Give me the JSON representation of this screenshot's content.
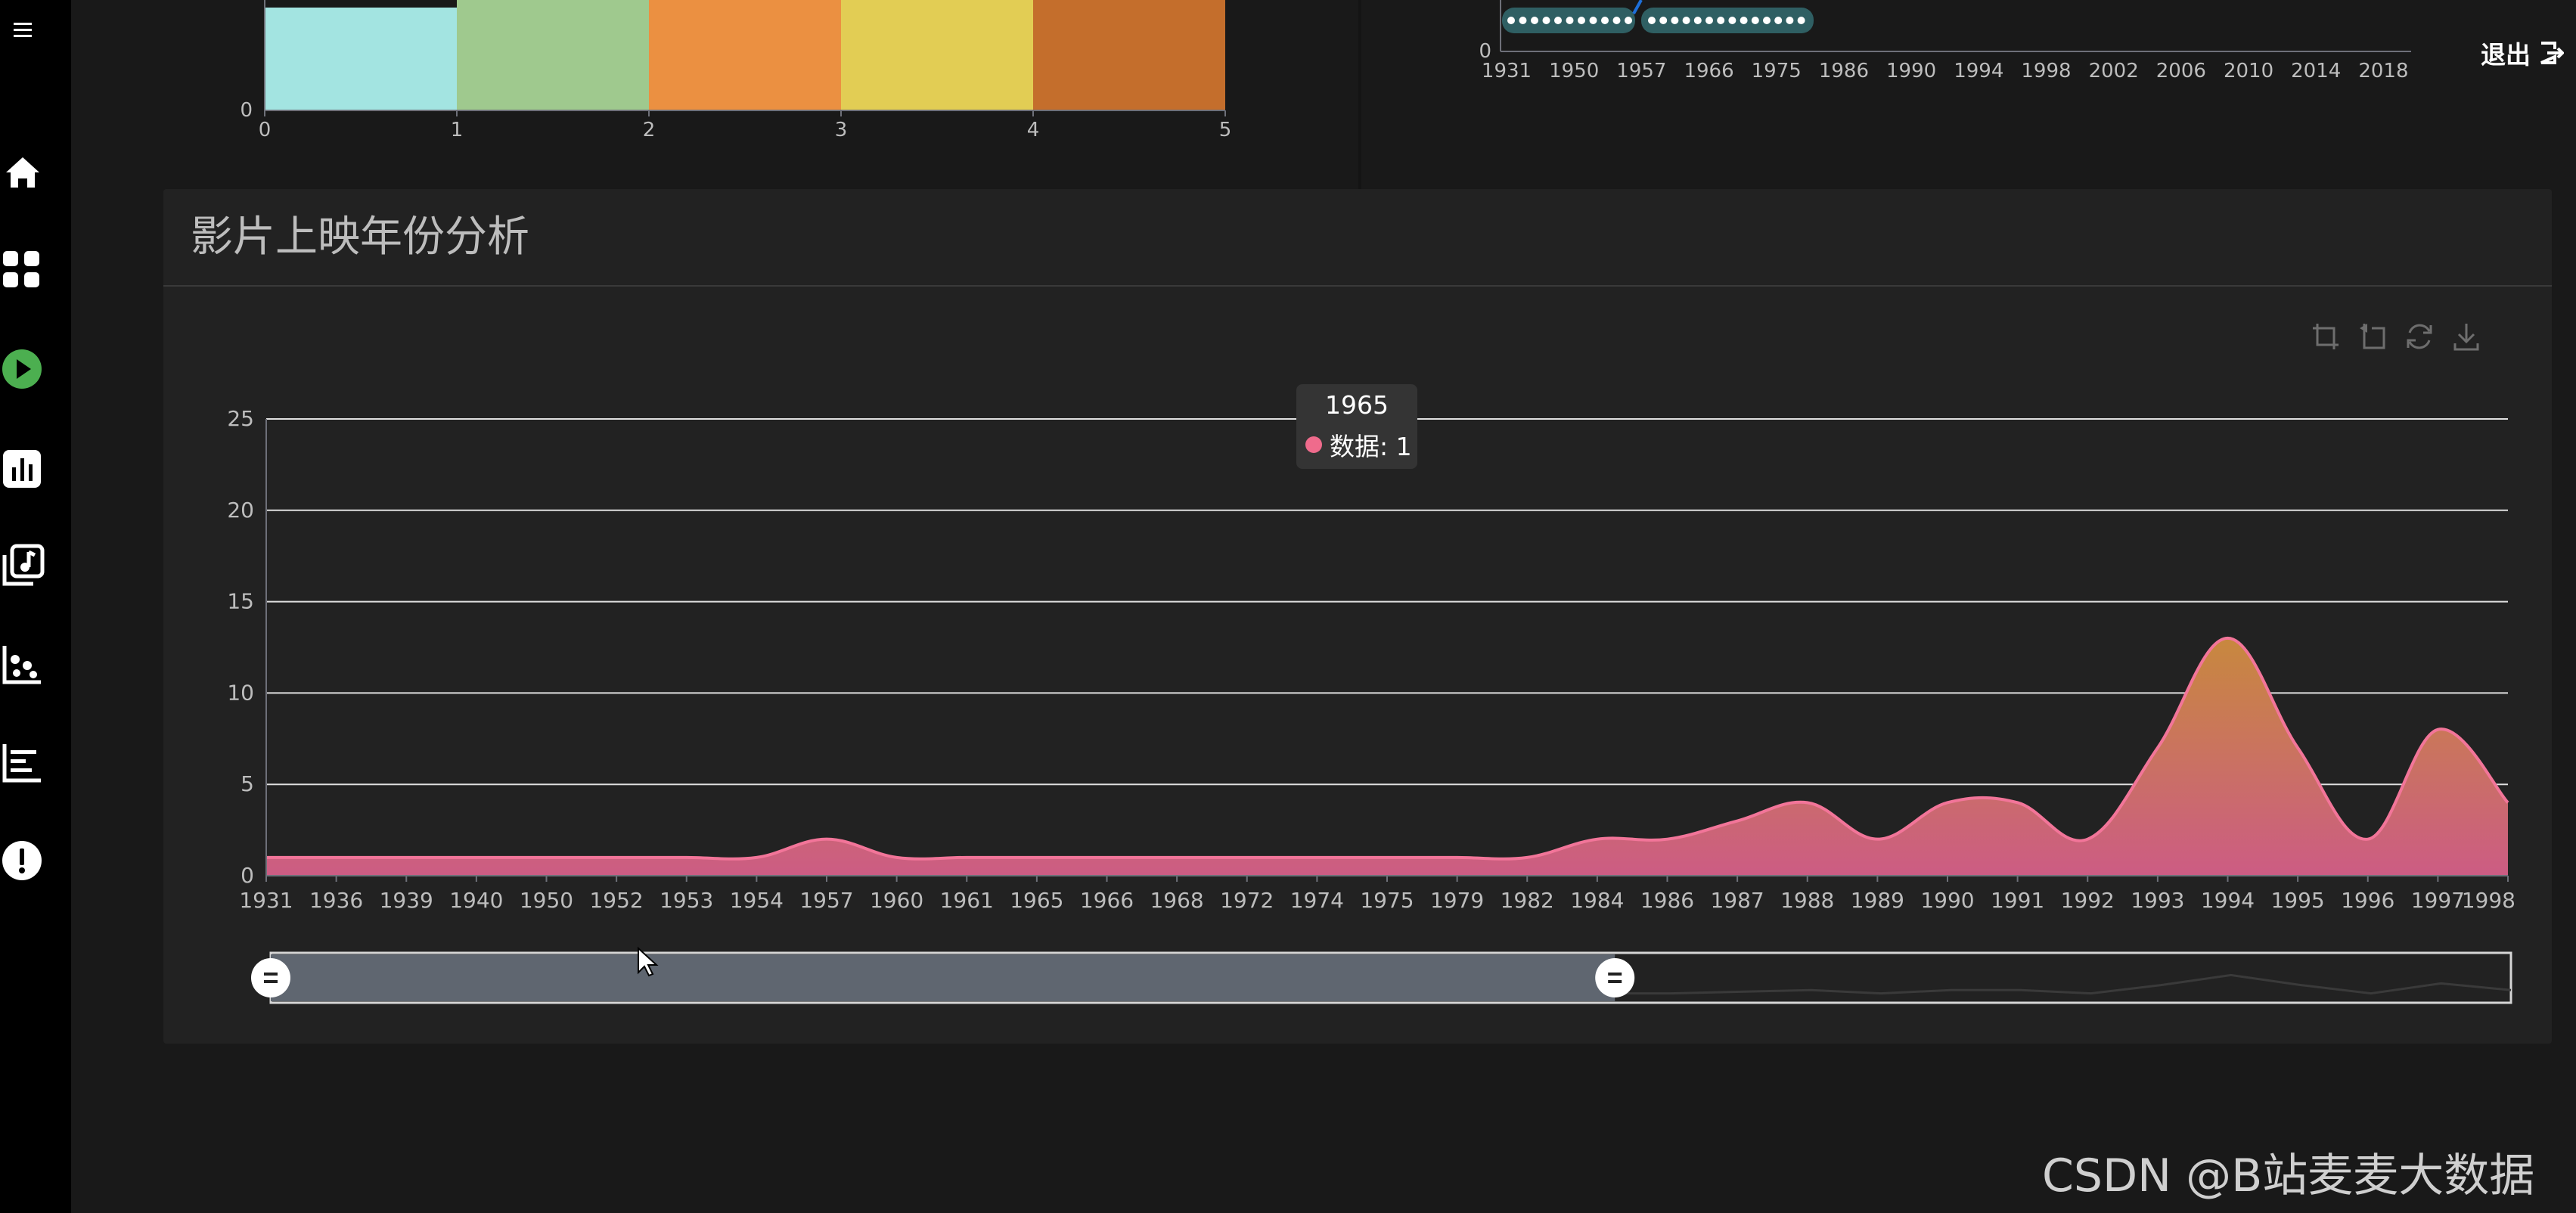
{
  "sidebar": {
    "items": [
      {
        "icon": "menu-icon"
      },
      {
        "icon": "home-icon"
      },
      {
        "icon": "grid-icon"
      },
      {
        "icon": "play-icon",
        "color": "#4caf50"
      },
      {
        "icon": "bar-chart-icon"
      },
      {
        "icon": "music-library-icon"
      },
      {
        "icon": "scatter-icon"
      },
      {
        "icon": "horizontal-bar-icon"
      },
      {
        "icon": "alert-icon"
      }
    ]
  },
  "header": {
    "exit_label": "退出",
    "exit_icon": "exit-icon"
  },
  "top_left_chart": {
    "type": "bar",
    "x_ticks": [
      "0",
      "1",
      "2",
      "3",
      "4",
      "5"
    ],
    "y_ticks": [
      "0"
    ],
    "colors": [
      "#a3e4e1",
      "#9fc98e",
      "#eb9041",
      "#e2cd54",
      "#c46e2c"
    ]
  },
  "top_right_chart": {
    "type": "line",
    "x_ticks": [
      "1931",
      "1950",
      "1957",
      "1966",
      "1975",
      "1986",
      "1990",
      "1994",
      "1998",
      "2002",
      "2006",
      "2010",
      "2014",
      "2018"
    ],
    "y_ticks": [
      "0"
    ]
  },
  "panel": {
    "title": "影片上映年份分析"
  },
  "toolbox": [
    "crop-icon",
    "undo-icon",
    "refresh-icon",
    "download-icon"
  ],
  "tooltip": {
    "title": "1965",
    "label": "数据: 1",
    "color": "#ef6b8c"
  },
  "chart_data": {
    "type": "area",
    "smooth": true,
    "categories": [
      "1931",
      "1936",
      "1939",
      "1940",
      "1950",
      "1952",
      "1953",
      "1954",
      "1957",
      "1960",
      "1961",
      "1965",
      "1966",
      "1968",
      "1972",
      "1974",
      "1975",
      "1979",
      "1982",
      "1984",
      "1986",
      "1987",
      "1988",
      "1989",
      "1990",
      "1991",
      "1992",
      "1993",
      "1994",
      "1995",
      "1996",
      "1997",
      "1998"
    ],
    "x_tick_labels": [
      "1931",
      "1936",
      "1939",
      "1940",
      "1950",
      "1952",
      "1953",
      "1954",
      "1957",
      "1960",
      "1961",
      "1965",
      "1966",
      "1968",
      "1972",
      "1974",
      "1975",
      "1979",
      "1982",
      "1984",
      "1986",
      "1987",
      "1988",
      "1989",
      "1990",
      "1991",
      "1992",
      "1993",
      "1994",
      "1995",
      "1996",
      "1997",
      "1998"
    ],
    "values": [
      1,
      1,
      1,
      1,
      1,
      1,
      1,
      1,
      2,
      1,
      1,
      1,
      1,
      1,
      1,
      1,
      1,
      1,
      1,
      2,
      2,
      3,
      4,
      2,
      4,
      4,
      2,
      7,
      13,
      7,
      2,
      8,
      4
    ],
    "ylim": [
      0,
      25
    ],
    "y_ticks": [
      0,
      5,
      10,
      15,
      20,
      25
    ],
    "grid": true,
    "gradient": [
      "#c8883e",
      "#cc5c84"
    ],
    "line_color": "#f27599",
    "data_zoom": {
      "start": 0,
      "end": 60
    }
  },
  "watermark": "CSDN @B站麦麦大数据"
}
